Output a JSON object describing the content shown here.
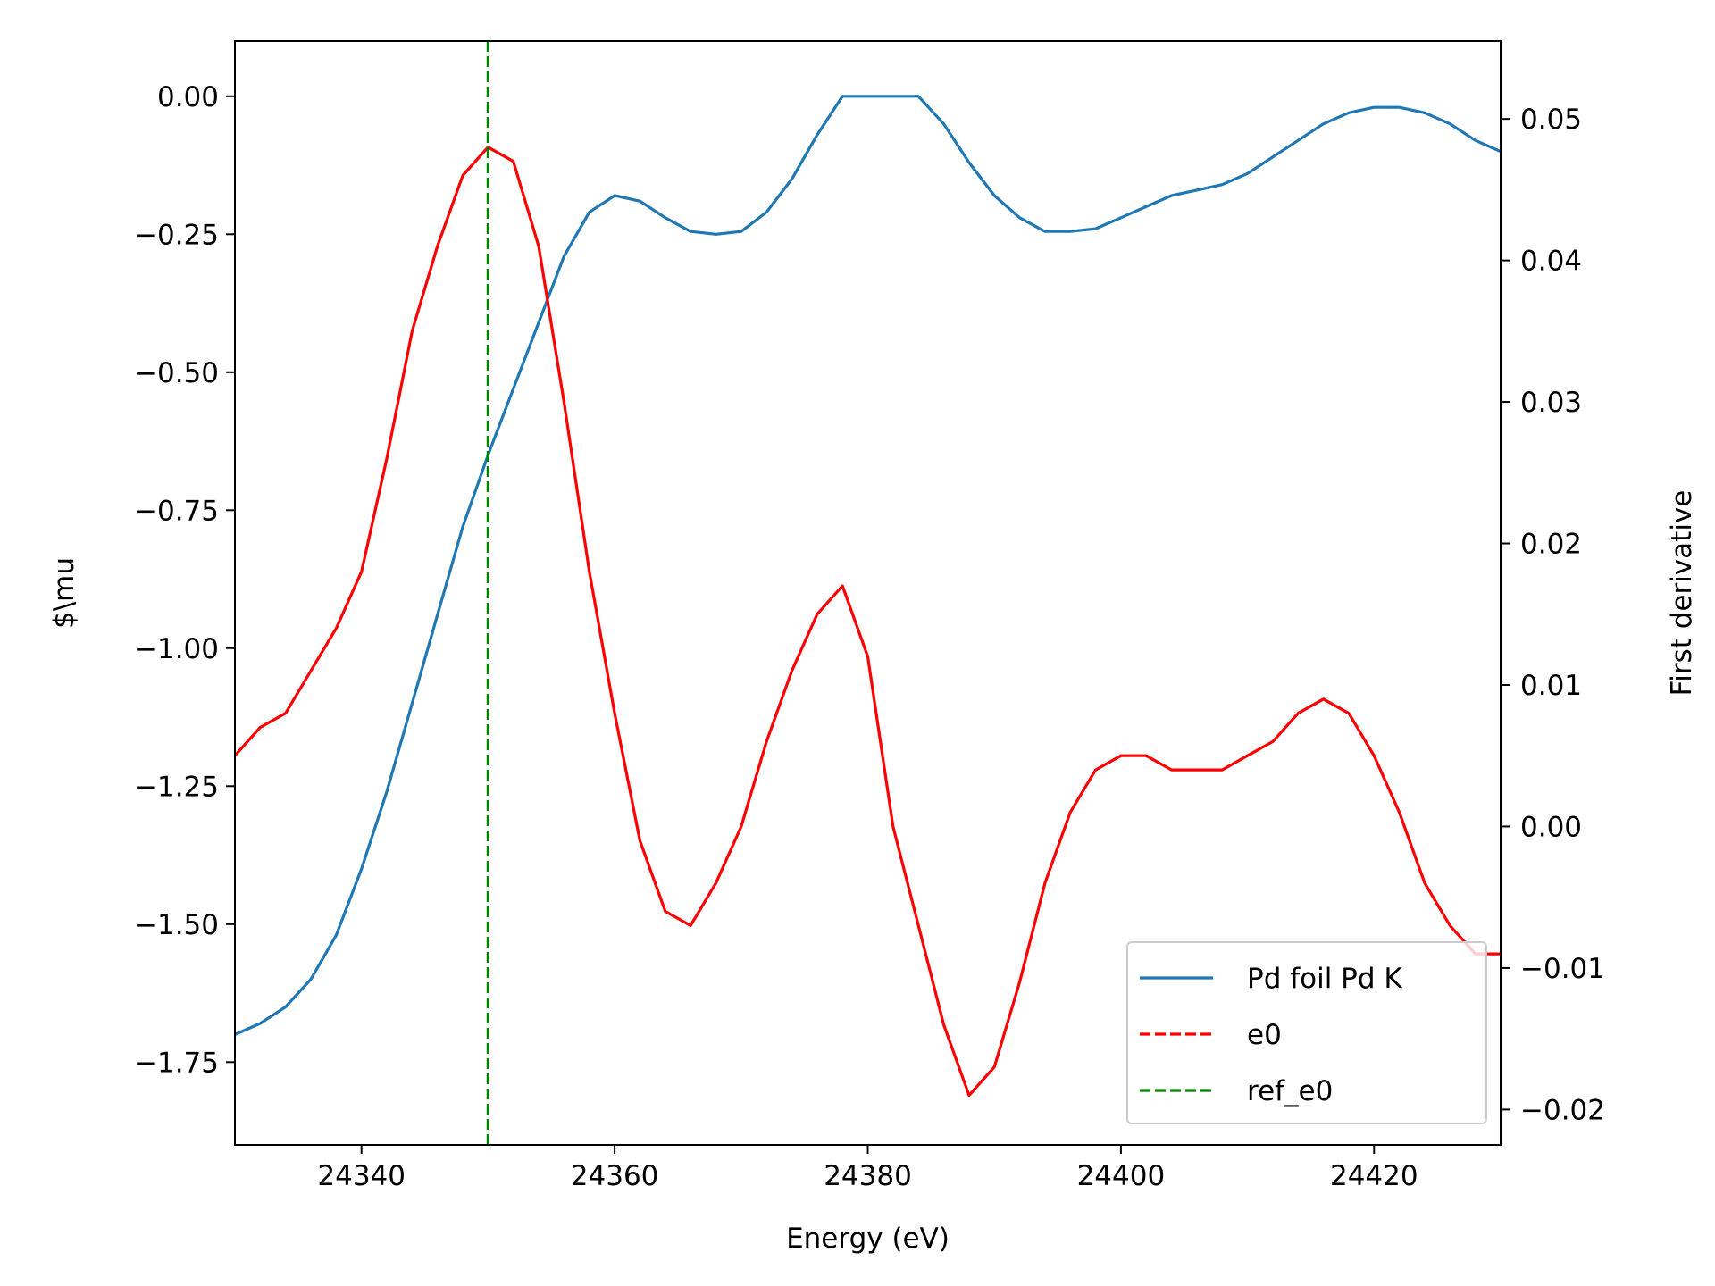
{
  "chart_data": {
    "type": "line",
    "xlabel": "Energy (eV)",
    "ylabel_left": "$\\mu",
    "ylabel_right": "First derivative",
    "xlim": [
      24330,
      24430
    ],
    "ylim_left": [
      -1.9,
      0.1
    ],
    "ylim_right": [
      -0.0225,
      0.0555
    ],
    "x_ticks": [
      24340,
      24360,
      24380,
      24400,
      24420
    ],
    "y_left_ticks": [
      0.0,
      -0.25,
      -0.5,
      -0.75,
      -1.0,
      -1.25,
      -1.5,
      -1.75
    ],
    "y_left_tick_labels": [
      "0.00",
      "−0.25",
      "−0.50",
      "−0.75",
      "−1.00",
      "−1.25",
      "−1.50",
      "−1.75"
    ],
    "y_right_ticks": [
      0.05,
      0.04,
      0.03,
      0.02,
      0.01,
      0.0,
      -0.01,
      -0.02
    ],
    "y_right_tick_labels": [
      "0.05",
      "0.04",
      "0.03",
      "0.02",
      "0.01",
      "0.00",
      "−0.01",
      "−0.02"
    ],
    "x_tick_labels": [
      "24340",
      "24360",
      "24380",
      "24400",
      "24420"
    ],
    "legend_position": "lower-right",
    "legend": [
      {
        "label": "Pd foil Pd  K",
        "color": "#1f77b4",
        "style": "solid"
      },
      {
        "label": "e0",
        "color": "#ff0000",
        "style": "dashed"
      },
      {
        "label": "ref_e0",
        "color": "#008000",
        "style": "dashed"
      }
    ],
    "series": [
      {
        "name": "Pd foil Pd  K",
        "axis": "left",
        "color": "#1f77b4",
        "x": [
          24330,
          24332,
          24334,
          24336,
          24338,
          24340,
          24342,
          24344,
          24346,
          24348,
          24350,
          24352,
          24354,
          24356,
          24358,
          24360,
          24362,
          24364,
          24366,
          24368,
          24370,
          24372,
          24374,
          24376,
          24378,
          24380,
          24382,
          24384,
          24386,
          24388,
          24390,
          24392,
          24394,
          24396,
          24398,
          24400,
          24402,
          24404,
          24406,
          24408,
          24410,
          24412,
          24414,
          24416,
          24418,
          24420,
          24422,
          24424,
          24426,
          24428,
          24430
        ],
        "y": [
          -1.7,
          -1.68,
          -1.65,
          -1.6,
          -1.52,
          -1.4,
          -1.26,
          -1.1,
          -0.94,
          -0.78,
          -0.65,
          -0.53,
          -0.41,
          -0.29,
          -0.21,
          -0.18,
          -0.19,
          -0.22,
          -0.245,
          -0.25,
          -0.245,
          -0.21,
          -0.15,
          -0.07,
          0.0,
          0.0,
          0.0,
          0.0,
          -0.05,
          -0.12,
          -0.18,
          -0.22,
          -0.245,
          -0.245,
          -0.24,
          -0.22,
          -0.2,
          -0.18,
          -0.17,
          -0.16,
          -0.14,
          -0.11,
          -0.08,
          -0.05,
          -0.03,
          -0.02,
          -0.02,
          -0.03,
          -0.05,
          -0.08,
          -0.1
        ]
      },
      {
        "name": "",
        "axis": "right",
        "color": "#ff0000",
        "x": [
          24330,
          24332,
          24334,
          24336,
          24338,
          24340,
          24342,
          24344,
          24346,
          24348,
          24350,
          24352,
          24354,
          24356,
          24358,
          24360,
          24362,
          24364,
          24366,
          24368,
          24370,
          24372,
          24374,
          24376,
          24378,
          24380,
          24382,
          24384,
          24386,
          24388,
          24390,
          24392,
          24394,
          24396,
          24398,
          24400,
          24402,
          24404,
          24406,
          24408,
          24410,
          24412,
          24414,
          24416,
          24418,
          24420,
          24422,
          24424,
          24426,
          24428,
          24430
        ],
        "y": [
          0.005,
          0.007,
          0.008,
          0.011,
          0.014,
          0.018,
          0.026,
          0.035,
          0.041,
          0.046,
          0.048,
          0.047,
          0.041,
          0.03,
          0.018,
          0.008,
          -0.001,
          -0.006,
          -0.007,
          -0.004,
          0.0,
          0.006,
          0.011,
          0.015,
          0.017,
          0.012,
          0.0,
          -0.007,
          -0.014,
          -0.019,
          -0.017,
          -0.011,
          -0.004,
          0.001,
          0.004,
          0.005,
          0.005,
          0.004,
          0.004,
          0.004,
          0.005,
          0.006,
          0.008,
          0.009,
          0.008,
          0.005,
          0.001,
          -0.004,
          -0.007,
          -0.009,
          -0.009
        ]
      }
    ],
    "vlines": [
      {
        "name": "ref_e0",
        "x": 24350,
        "color": "#008000"
      }
    ]
  }
}
